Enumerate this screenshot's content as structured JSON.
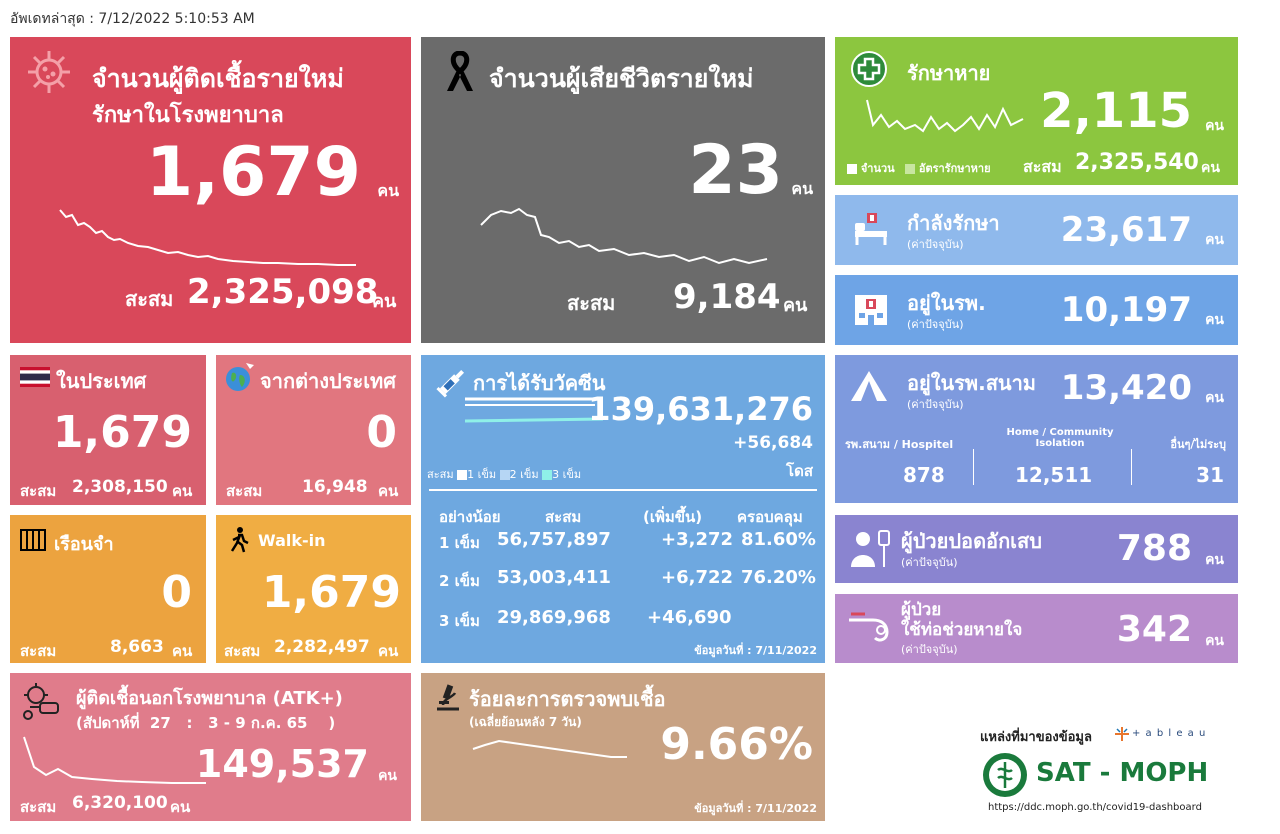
{
  "updated": "อัพเดทล่าสุด : 7/12/2022 5:10:53 AM",
  "colors": {
    "new_cases": "#d9485a",
    "deaths": "#6b6b6b",
    "recovered": "#8cc63f",
    "treating": "#8fb9ec",
    "hospital": "#6ea4e6",
    "domestic": "#d8606f",
    "foreign": "#e1767f",
    "vaccine": "#6ea8e0",
    "field_hospital": "#7e9ade",
    "prison": "#eca33f",
    "walkin": "#f0ad43",
    "pneumonia": "#8a84d0",
    "ventilator": "#b88ccc",
    "atk": "#e07c8b",
    "positivity": "#c8a283"
  },
  "new_cases": {
    "icon": "virus-icon",
    "title1": "จำนวนผู้ติดเชื้อรายใหม่",
    "title2": "รักษาในโรงพยาบาล",
    "value": "1,679",
    "unit": "คน",
    "cum_label": "สะสม",
    "cum": "2,325,098",
    "cum_unit": "คน"
  },
  "deaths": {
    "icon": "ribbon-icon",
    "title": "จำนวนผู้เสียชีวิตรายใหม่",
    "value": "23",
    "unit": "คน",
    "cum_label": "สะสม",
    "cum": "9,184",
    "cum_unit": "คน"
  },
  "recovered": {
    "icon": "medical-cross-icon",
    "title": "รักษาหาย",
    "value": "2,115",
    "unit": "คน",
    "legend1": "จำนวน",
    "legend2": "อัตรารักษาหาย",
    "cum_label": "สะสม",
    "cum": "2,325,540",
    "cum_unit": "คน"
  },
  "treating": {
    "icon": "hospital-bed-icon",
    "title": "กำลังรักษา",
    "sub": "(ค่าปัจจุบัน)",
    "value": "23,617",
    "unit": "คน"
  },
  "hospital": {
    "icon": "hospital-building-icon",
    "title": "อยู่ในรพ.",
    "sub": "(ค่าปัจจุบัน)",
    "value": "10,197",
    "unit": "คน"
  },
  "domestic": {
    "icon": "thai-flag-icon",
    "title": "ในประเทศ",
    "value": "1,679",
    "cum_label": "สะสม",
    "cum": "2,308,150",
    "cum_unit": "คน"
  },
  "foreign": {
    "icon": "globe-plane-icon",
    "title": "จากต่างประเทศ",
    "value": "0",
    "cum_label": "สะสม",
    "cum": "16,948",
    "cum_unit": "คน"
  },
  "vaccine": {
    "icon": "syringe-icon",
    "title": "การได้รับวัคซีน",
    "total": "139,631,276",
    "delta": "+56,684",
    "unit": "โดส",
    "legend": [
      "สะสม",
      "1 เข็ม",
      "2 เข็ม",
      "3 เข็ม"
    ],
    "headers": [
      "อย่างน้อย",
      "สะสม",
      "(เพิ่มขึ้น)",
      "ครอบคลุม"
    ],
    "rows": [
      {
        "dose": "1 เข็ม",
        "cum": "56,757,897",
        "inc": "+3,272",
        "cov": "81.60%"
      },
      {
        "dose": "2 เข็ม",
        "cum": "53,003,411",
        "inc": "+6,722",
        "cov": "76.20%"
      },
      {
        "dose": "3 เข็ม",
        "cum": "29,869,968",
        "inc": "+46,690",
        "cov": ""
      }
    ],
    "date": "ข้อมูลวันที่ : 7/11/2022"
  },
  "field_hospital": {
    "icon": "tent-icon",
    "title": "อยู่ในรพ.สนาม",
    "sub": "(ค่าปัจจุบัน)",
    "value": "13,420",
    "unit": "คน",
    "cols": [
      {
        "label": "รพ.สนาม / Hospitel",
        "value": "878"
      },
      {
        "label": "Home / Community Isolation",
        "value": "12,511"
      },
      {
        "label": "อื่นๆ/ไม่ระบุ",
        "value": "31"
      }
    ]
  },
  "prison": {
    "icon": "prison-bars-icon",
    "title": "เรือนจำ",
    "value": "0",
    "cum_label": "สะสม",
    "cum": "8,663",
    "cum_unit": "คน"
  },
  "walkin": {
    "icon": "walking-person-icon",
    "title": "Walk-in",
    "value": "1,679",
    "cum_label": "สะสม",
    "cum": "2,282,497",
    "cum_unit": "คน"
  },
  "pneumonia": {
    "icon": "patient-iv-icon",
    "title": "ผู้ป่วยปอดอักเสบ",
    "sub": "(ค่าปัจจุบัน)",
    "value": "788",
    "unit": "คน"
  },
  "ventilator": {
    "icon": "ventilator-icon",
    "title1": "ผู้ป่วย",
    "title2": "ใช้ท่อช่วยหายใจ",
    "sub": "(ค่าปัจจุบัน)",
    "value": "342",
    "unit": "คน"
  },
  "atk": {
    "icon": "atk-virus-icon",
    "title": "ผู้ติดเชื้อนอกโรงพยาบาล (ATK+)",
    "week": "(สัปดาห์ที่  27   :   3 - 9 ก.ค. 65    )",
    "value": "149,537",
    "unit": "คน",
    "cum_label": "สะสม",
    "cum": "6,320,100",
    "cum_unit": "คน"
  },
  "positivity": {
    "icon": "microscope-icon",
    "title": "ร้อยละการตรวจพบเชื้อ",
    "sub": "(เฉลี่ยย้อนหลัง 7 วัน)",
    "value": "9.66%",
    "date": "ข้อมูลวันที่ : 7/11/2022"
  },
  "source": {
    "label": "แหล่งที่มาของข้อมูล",
    "tableau": "+ a b l e a u",
    "org": "SAT - MOPH",
    "url": "https://ddc.moph.go.th/covid19-dashboard"
  }
}
